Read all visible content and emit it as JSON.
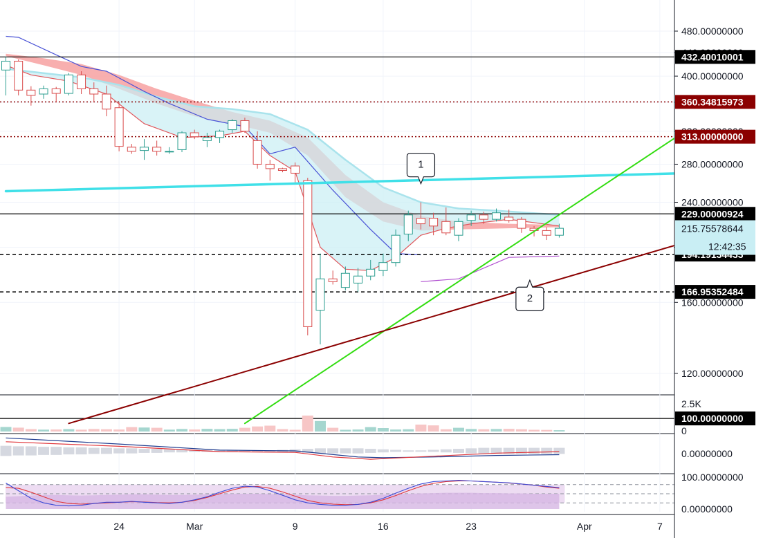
{
  "chart_data": {
    "type": "candlestick",
    "interval": "daily",
    "x_axis": {
      "tick_labels": [
        "24",
        "Mar",
        "9",
        "16",
        "23",
        "Apr",
        "7"
      ],
      "first_date": "2020-02-15",
      "last_date": "2020-04-09"
    },
    "price_axis": {
      "scale": "log",
      "range": [
        98,
        520
      ],
      "tick_labels": [
        "480.00000000",
        "440.00000000",
        "400.00000000",
        "360.00000000",
        "320.00000000",
        "280.00000000",
        "240.00000000",
        "200.00000000",
        "160.00000000",
        "120.00000000"
      ]
    },
    "candles": [
      {
        "date": "2020-02-15",
        "o": 410,
        "h": 432,
        "l": 370,
        "c": 425
      },
      {
        "date": "2020-02-16",
        "o": 425,
        "h": 428,
        "l": 370,
        "c": 378
      },
      {
        "date": "2020-02-17",
        "o": 378,
        "h": 384,
        "l": 355,
        "c": 370
      },
      {
        "date": "2020-02-18",
        "o": 372,
        "h": 385,
        "l": 365,
        "c": 380
      },
      {
        "date": "2020-02-19",
        "o": 380,
        "h": 383,
        "l": 360,
        "c": 373
      },
      {
        "date": "2020-02-20",
        "o": 373,
        "h": 405,
        "l": 370,
        "c": 402
      },
      {
        "date": "2020-02-21",
        "o": 402,
        "h": 408,
        "l": 372,
        "c": 380
      },
      {
        "date": "2020-02-22",
        "o": 380,
        "h": 390,
        "l": 360,
        "c": 372
      },
      {
        "date": "2020-02-23",
        "o": 372,
        "h": 385,
        "l": 340,
        "c": 350
      },
      {
        "date": "2020-02-24",
        "o": 352,
        "h": 360,
        "l": 295,
        "c": 301
      },
      {
        "date": "2020-02-25",
        "o": 300,
        "h": 304,
        "l": 292,
        "c": 295
      },
      {
        "date": "2020-02-26",
        "o": 296,
        "h": 310,
        "l": 285,
        "c": 300
      },
      {
        "date": "2020-02-27",
        "o": 300,
        "h": 308,
        "l": 290,
        "c": 295
      },
      {
        "date": "2020-02-28",
        "o": 295,
        "h": 300,
        "l": 292,
        "c": 295
      },
      {
        "date": "2020-02-29",
        "o": 297,
        "h": 320,
        "l": 294,
        "c": 318
      },
      {
        "date": "2020-03-01",
        "o": 318,
        "h": 322,
        "l": 310,
        "c": 313
      },
      {
        "date": "2020-03-02",
        "o": 308,
        "h": 318,
        "l": 300,
        "c": 312
      },
      {
        "date": "2020-03-03",
        "o": 312,
        "h": 322,
        "l": 305,
        "c": 320
      },
      {
        "date": "2020-03-04",
        "o": 322,
        "h": 336,
        "l": 318,
        "c": 334
      },
      {
        "date": "2020-03-05",
        "o": 334,
        "h": 338,
        "l": 318,
        "c": 320
      },
      {
        "date": "2020-03-06",
        "o": 308,
        "h": 320,
        "l": 275,
        "c": 280
      },
      {
        "date": "2020-03-07",
        "o": 280,
        "h": 285,
        "l": 262,
        "c": 275
      },
      {
        "date": "2020-03-08",
        "o": 275,
        "h": 276,
        "l": 271,
        "c": 273
      },
      {
        "date": "2020-03-09",
        "o": 278,
        "h": 282,
        "l": 258,
        "c": 270
      },
      {
        "date": "2020-03-10",
        "o": 262,
        "h": 265,
        "l": 140,
        "c": 145
      },
      {
        "date": "2020-03-11",
        "o": 155,
        "h": 195,
        "l": 135,
        "c": 176
      },
      {
        "date": "2020-03-12",
        "o": 176,
        "h": 182,
        "l": 172,
        "c": 174
      },
      {
        "date": "2020-03-13",
        "o": 170,
        "h": 185,
        "l": 168,
        "c": 180
      },
      {
        "date": "2020-03-14",
        "o": 173,
        "h": 184,
        "l": 167,
        "c": 178
      },
      {
        "date": "2020-03-15",
        "o": 178,
        "h": 190,
        "l": 175,
        "c": 183
      },
      {
        "date": "2020-03-16",
        "o": 182,
        "h": 195,
        "l": 178,
        "c": 188
      },
      {
        "date": "2020-03-17",
        "o": 188,
        "h": 215,
        "l": 185,
        "c": 210
      },
      {
        "date": "2020-03-18",
        "o": 211,
        "h": 232,
        "l": 205,
        "c": 228
      },
      {
        "date": "2020-03-19",
        "o": 225,
        "h": 240,
        "l": 215,
        "c": 220
      },
      {
        "date": "2020-03-20",
        "o": 225,
        "h": 230,
        "l": 210,
        "c": 218
      },
      {
        "date": "2020-03-21",
        "o": 222,
        "h": 235,
        "l": 210,
        "c": 212
      },
      {
        "date": "2020-03-22",
        "o": 210,
        "h": 225,
        "l": 205,
        "c": 222
      },
      {
        "date": "2020-03-23",
        "o": 223,
        "h": 232,
        "l": 218,
        "c": 228
      },
      {
        "date": "2020-03-24",
        "o": 228,
        "h": 231,
        "l": 220,
        "c": 224
      },
      {
        "date": "2020-03-25",
        "o": 224,
        "h": 234,
        "l": 222,
        "c": 230
      },
      {
        "date": "2020-03-26",
        "o": 226,
        "h": 233,
        "l": 221,
        "c": 223
      },
      {
        "date": "2020-03-27",
        "o": 224,
        "h": 226,
        "l": 212,
        "c": 216
      },
      {
        "date": "2020-03-28",
        "o": 216,
        "h": 218,
        "l": 209,
        "c": 214
      },
      {
        "date": "2020-03-29",
        "o": 214,
        "h": 217,
        "l": 206,
        "c": 210
      },
      {
        "date": "2020-03-30",
        "o": 210,
        "h": 220,
        "l": 208,
        "c": 216
      }
    ],
    "ema_fast": [
      {
        "date": "2020-02-15",
        "v": 418
      },
      {
        "date": "2020-02-17",
        "v": 402
      },
      {
        "date": "2020-02-20",
        "v": 392
      },
      {
        "date": "2020-02-23",
        "v": 372
      },
      {
        "date": "2020-02-26",
        "v": 330
      },
      {
        "date": "2020-02-29",
        "v": 312
      },
      {
        "date": "2020-03-03",
        "v": 314
      },
      {
        "date": "2020-03-05",
        "v": 320
      },
      {
        "date": "2020-03-07",
        "v": 290
      },
      {
        "date": "2020-03-09",
        "v": 272
      },
      {
        "date": "2020-03-11",
        "v": 200
      },
      {
        "date": "2020-03-13",
        "v": 183
      },
      {
        "date": "2020-03-15",
        "v": 182
      },
      {
        "date": "2020-03-17",
        "v": 192
      },
      {
        "date": "2020-03-19",
        "v": 210
      },
      {
        "date": "2020-03-21",
        "v": 216
      },
      {
        "date": "2020-03-23",
        "v": 220
      },
      {
        "date": "2020-03-26",
        "v": 224
      },
      {
        "date": "2020-03-30",
        "v": 218
      }
    ],
    "ema_slow": [
      {
        "date": "2020-02-15",
        "v": 412
      },
      {
        "date": "2020-02-18",
        "v": 405
      },
      {
        "date": "2020-02-21",
        "v": 398
      },
      {
        "date": "2020-02-24",
        "v": 386
      },
      {
        "date": "2020-02-27",
        "v": 368
      },
      {
        "date": "2020-03-01",
        "v": 354
      },
      {
        "date": "2020-03-04",
        "v": 350
      },
      {
        "date": "2020-03-07",
        "v": 343
      },
      {
        "date": "2020-03-10",
        "v": 322
      },
      {
        "date": "2020-03-13",
        "v": 285
      },
      {
        "date": "2020-03-16",
        "v": 255
      },
      {
        "date": "2020-03-19",
        "v": 240
      },
      {
        "date": "2020-03-22",
        "v": 234
      },
      {
        "date": "2020-03-25",
        "v": 232
      },
      {
        "date": "2020-03-30",
        "v": 228
      }
    ],
    "ribbon_upper": [
      {
        "date": "2020-02-15",
        "v": 438
      },
      {
        "date": "2020-02-18",
        "v": 430
      },
      {
        "date": "2020-02-21",
        "v": 420
      },
      {
        "date": "2020-02-24",
        "v": 402
      },
      {
        "date": "2020-02-27",
        "v": 380
      },
      {
        "date": "2020-03-01",
        "v": 362
      },
      {
        "date": "2020-03-04",
        "v": 346
      },
      {
        "date": "2020-03-07",
        "v": 334
      },
      {
        "date": "2020-03-10",
        "v": 312
      },
      {
        "date": "2020-03-13",
        "v": 268
      },
      {
        "date": "2020-03-16",
        "v": 240
      },
      {
        "date": "2020-03-19",
        "v": 227
      },
      {
        "date": "2020-03-22",
        "v": 222
      },
      {
        "date": "2020-03-26",
        "v": 220
      },
      {
        "date": "2020-03-30",
        "v": 219
      }
    ],
    "ribbon_lower": [
      {
        "date": "2020-02-15",
        "v": 434
      },
      {
        "date": "2020-02-18",
        "v": 418
      },
      {
        "date": "2020-02-21",
        "v": 402
      },
      {
        "date": "2020-02-24",
        "v": 380
      },
      {
        "date": "2020-02-27",
        "v": 358
      },
      {
        "date": "2020-03-01",
        "v": 340
      },
      {
        "date": "2020-03-04",
        "v": 330
      },
      {
        "date": "2020-03-07",
        "v": 318
      },
      {
        "date": "2020-03-10",
        "v": 290
      },
      {
        "date": "2020-03-13",
        "v": 245
      },
      {
        "date": "2020-03-16",
        "v": 222
      },
      {
        "date": "2020-03-19",
        "v": 214
      },
      {
        "date": "2020-03-22",
        "v": 215
      },
      {
        "date": "2020-03-26",
        "v": 216
      },
      {
        "date": "2020-03-30",
        "v": 217
      }
    ],
    "trend_fast": [
      {
        "date": "2020-02-15",
        "v": 470
      },
      {
        "date": "2020-02-16",
        "v": 468
      },
      {
        "date": "2020-02-19",
        "v": 436
      },
      {
        "date": "2020-02-21",
        "v": 416
      },
      {
        "date": "2020-02-23",
        "v": 408
      },
      {
        "date": "2020-02-26",
        "v": 376
      },
      {
        "date": "2020-02-28",
        "v": 358
      },
      {
        "date": "2020-03-02",
        "v": 336
      },
      {
        "date": "2020-03-05",
        "v": 326
      },
      {
        "date": "2020-03-07",
        "v": 292
      },
      {
        "date": "2020-03-09",
        "v": 300
      },
      {
        "date": "2020-03-12",
        "v": 252
      },
      {
        "date": "2020-03-15",
        "v": 215
      },
      {
        "date": "2020-03-17",
        "v": 195
      },
      {
        "date": "2020-03-19",
        "v": 194
      }
    ],
    "long_term_lower": [
      {
        "date": "2020-03-19",
        "v": 174
      },
      {
        "date": "2020-03-22",
        "v": 176
      },
      {
        "date": "2020-03-26",
        "v": 192
      },
      {
        "date": "2020-03-30",
        "v": 193
      }
    ],
    "lines": [
      {
        "name": "cyan-resistance",
        "color": "#40e0e8",
        "p1": {
          "date": "2020-02-15",
          "price": 251
        },
        "p2": {
          "date": "2020-04-09",
          "price": 270
        }
      },
      {
        "name": "green-trendline",
        "color": "#33dd11",
        "p1": {
          "date": "2020-03-05",
          "price": 98
        },
        "p2": {
          "date": "2020-04-09",
          "price": 320
        }
      },
      {
        "name": "red-support",
        "color": "#8b0000",
        "p1": {
          "date": "2020-02-20",
          "price": 98
        },
        "p2": {
          "date": "2020-04-09",
          "price": 204
        }
      }
    ],
    "horizontal_levels": [
      {
        "price": 432.40010001,
        "label": "432.40010001",
        "style": "solid",
        "color": "#000000",
        "tag_bg": "#000000"
      },
      {
        "price": 360.34815973,
        "label": "360.34815973",
        "style": "dotted",
        "color": "#8b0000",
        "tag_bg": "#8b0000"
      },
      {
        "price": 313.0,
        "label": "313.00000000",
        "style": "dotted",
        "color": "#8b0000",
        "tag_bg": "#8b0000"
      },
      {
        "price": 229.00000924,
        "label": "229.00000924",
        "style": "solid",
        "color": "#000000",
        "tag_bg": "#000000"
      },
      {
        "price": 194.19134433,
        "label": "194.19134433",
        "style": "dashed",
        "color": "#000000",
        "tag_bg": "#000000"
      },
      {
        "price": 166.95352484,
        "label": "166.95352484",
        "style": "dashed",
        "color": "#000000",
        "tag_bg": "#000000"
      },
      {
        "price": 100.0,
        "label": "100.00000000",
        "style": "solid",
        "color": "#000000",
        "tag_bg": "#000000"
      }
    ],
    "last_price": {
      "value": "215.75578644",
      "countdown": "12:42:35",
      "price": 215.76
    },
    "callouts": [
      {
        "text": "1",
        "date": "2020-03-19",
        "price": 258
      },
      {
        "text": "2",
        "date": "2020-03-27",
        "price": 180
      }
    ],
    "volume": {
      "axis_labels": [
        "2.5K",
        "0"
      ],
      "max": 2600,
      "values": [
        340,
        290,
        180,
        140,
        150,
        180,
        140,
        190,
        170,
        150,
        330,
        300,
        280,
        140,
        190,
        150,
        200,
        180,
        200,
        280,
        380,
        440,
        180,
        130,
        1200,
        790,
        280,
        130,
        150,
        330,
        260,
        150,
        170,
        520,
        460,
        170,
        280,
        190,
        170,
        190,
        200,
        170,
        130,
        120,
        100
      ]
    },
    "macd": {
      "axis_label": "0.00000000",
      "macd_line": [
        {
          "date": "2020-02-15",
          "v": 0.85
        },
        {
          "date": "2020-02-24",
          "v": 0.45
        },
        {
          "date": "2020-03-03",
          "v": 0.05
        },
        {
          "date": "2020-03-09",
          "v": 0.0
        },
        {
          "date": "2020-03-14",
          "v": -0.4
        },
        {
          "date": "2020-03-16",
          "v": -0.45
        },
        {
          "date": "2020-03-20",
          "v": -0.4
        },
        {
          "date": "2020-03-25",
          "v": -0.3
        },
        {
          "date": "2020-03-30",
          "v": -0.25
        }
      ],
      "signal_line": [
        {
          "date": "2020-02-15",
          "v": 0.6
        },
        {
          "date": "2020-02-24",
          "v": 0.3
        },
        {
          "date": "2020-03-03",
          "v": -0.05
        },
        {
          "date": "2020-03-09",
          "v": -0.1
        },
        {
          "date": "2020-03-12",
          "v": -0.4
        },
        {
          "date": "2020-03-15",
          "v": -0.55
        },
        {
          "date": "2020-03-20",
          "v": -0.35
        },
        {
          "date": "2020-03-25",
          "v": -0.15
        },
        {
          "date": "2020-03-30",
          "v": -0.05
        }
      ],
      "histogram": [
        0.2,
        0.18,
        0.18,
        0.16,
        0.16,
        0.14,
        0.14,
        0.12,
        0.12,
        0.1,
        0.1,
        0.08,
        0.08,
        0.06,
        0.06,
        0.04,
        0.04,
        0.03,
        0.02,
        0.02,
        0.02,
        0.02,
        0.04,
        0.06,
        0.08,
        0.1,
        0.1,
        0.1,
        0.1,
        0.08,
        0.06,
        0.04,
        0.02,
        0.02,
        0.04,
        0.06,
        0.08,
        0.1,
        0.12,
        0.12,
        0.12,
        0.12,
        0.12,
        0.12,
        0.12
      ]
    },
    "stoch_rsi": {
      "axis_labels": [
        "100.00000000",
        "0.00000000"
      ],
      "upper_band": 80,
      "lower_band": 20,
      "k_line": [
        85,
        60,
        35,
        20,
        12,
        10,
        12,
        18,
        22,
        22,
        25,
        22,
        20,
        18,
        22,
        30,
        40,
        55,
        68,
        75,
        72,
        60,
        45,
        30,
        20,
        15,
        12,
        12,
        15,
        22,
        35,
        52,
        68,
        82,
        90,
        92,
        94,
        92,
        90,
        88,
        86,
        82,
        78,
        74,
        70
      ],
      "d_line": [
        70,
        68,
        55,
        40,
        25,
        18,
        16,
        18,
        20,
        22,
        24,
        23,
        21,
        20,
        22,
        28,
        38,
        50,
        62,
        72,
        74,
        68,
        56,
        42,
        28,
        20,
        16,
        14,
        15,
        20,
        30,
        44,
        60,
        74,
        84,
        90,
        92,
        92,
        90,
        88,
        85,
        82,
        78,
        72,
        68
      ],
      "rsi_fill": [
        40,
        42,
        44,
        46,
        46,
        45,
        44,
        45,
        46,
        47,
        48,
        48,
        47,
        46,
        46,
        47,
        48,
        49,
        50,
        50,
        50,
        49,
        48,
        47,
        45,
        44,
        43,
        43,
        44,
        45,
        47,
        49,
        50,
        51,
        52,
        53,
        53,
        53,
        52,
        52,
        51,
        51,
        50,
        50,
        50
      ]
    }
  }
}
